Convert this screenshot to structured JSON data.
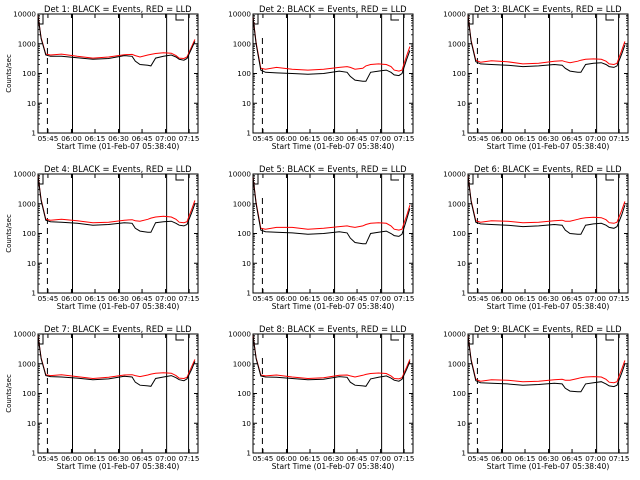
{
  "chart_data": {
    "type": "line",
    "layout": "3x3 grid",
    "xlabel": "Start Time (01-Feb-07 05:38:40)",
    "ylabel": "Counts/sec",
    "x_tick_labels": [
      "05:45",
      "06:00",
      "06:15",
      "06:30",
      "06:45",
      "07:00",
      "07:15"
    ],
    "y_tick_labels": [
      "1",
      "10",
      "100",
      "1000",
      "10000"
    ],
    "y_scale": "log",
    "ylim": [
      1,
      10000
    ],
    "xlim_minutes": [
      0,
      102
    ],
    "colors": {
      "events": "#000000",
      "lld": "#ff0000",
      "axes": "#000000",
      "background": "#ffffff"
    },
    "panels": [
      {
        "title": "Det 1: BLACK = Events, RED = LLD",
        "x": [
          0,
          2,
          5,
          8,
          15,
          25,
          35,
          45,
          55,
          60,
          62,
          65,
          70,
          72,
          75,
          80,
          85,
          88,
          90,
          93,
          95,
          98,
          100
        ],
        "series": [
          {
            "name": "Events",
            "values": [
              9000,
              1500,
              420,
              380,
              380,
              340,
              300,
              320,
              400,
              380,
              260,
              200,
              190,
              180,
              330,
              380,
              420,
              360,
              300,
              280,
              320,
              700,
              1200
            ]
          },
          {
            "name": "LLD",
            "values": [
              9000,
              1600,
              450,
              420,
              450,
              380,
              330,
              360,
              430,
              440,
              400,
              360,
              420,
              440,
              470,
              500,
              480,
              400,
              330,
              320,
              360,
              800,
              1400
            ]
          }
        ]
      },
      {
        "title": "Det 2: BLACK = Events, RED = LLD",
        "x": [
          0,
          2,
          5,
          8,
          15,
          25,
          35,
          45,
          55,
          60,
          62,
          65,
          70,
          72,
          75,
          80,
          85,
          88,
          90,
          93,
          95,
          98,
          100
        ],
        "series": [
          {
            "name": "Events",
            "values": [
              8000,
              1000,
              130,
              110,
              105,
              100,
              95,
              100,
              120,
              110,
              80,
              60,
              55,
              55,
              110,
              120,
              130,
              110,
              90,
              85,
              100,
              300,
              600
            ]
          },
          {
            "name": "LLD",
            "values": [
              8000,
              1100,
              150,
              140,
              160,
              140,
              130,
              140,
              160,
              170,
              160,
              140,
              150,
              180,
              200,
              210,
              200,
              170,
              130,
              120,
              130,
              400,
              800
            ]
          }
        ]
      },
      {
        "title": "Det 3: BLACK = Events, RED = LLD",
        "x": [
          0,
          2,
          5,
          8,
          15,
          25,
          35,
          45,
          55,
          60,
          62,
          65,
          70,
          72,
          75,
          80,
          85,
          88,
          90,
          93,
          95,
          98,
          100
        ],
        "series": [
          {
            "name": "Events",
            "values": [
              9000,
              1200,
              250,
              210,
              200,
              190,
              170,
              180,
              200,
              190,
              150,
              120,
              110,
              110,
              200,
              220,
              230,
              200,
              170,
              160,
              180,
              450,
              900
            ]
          },
          {
            "name": "LLD",
            "values": [
              9000,
              1300,
              280,
              240,
              270,
              250,
              210,
              220,
              260,
              270,
              250,
              230,
              260,
              280,
              300,
              310,
              300,
              260,
              210,
              200,
              220,
              600,
              1200
            ]
          }
        ]
      },
      {
        "title": "Det 4: BLACK = Events, RED = LLD",
        "x": [
          0,
          2,
          5,
          8,
          15,
          25,
          35,
          45,
          55,
          60,
          62,
          65,
          70,
          72,
          75,
          80,
          85,
          88,
          90,
          93,
          95,
          98,
          100
        ],
        "series": [
          {
            "name": "Events",
            "values": [
              9000,
              1300,
              280,
              250,
              240,
              220,
              190,
              200,
              230,
              220,
              150,
              120,
              110,
              110,
              230,
              250,
              260,
              220,
              190,
              180,
              200,
              500,
              1000
            ]
          },
          {
            "name": "LLD",
            "values": [
              9000,
              1400,
              300,
              280,
              300,
              270,
              230,
              240,
              280,
              290,
              270,
              260,
              300,
              330,
              360,
              380,
              360,
              300,
              240,
              230,
              250,
              650,
              1300
            ]
          }
        ]
      },
      {
        "title": "Det 5: BLACK = Events, RED = LLD",
        "x": [
          0,
          2,
          5,
          8,
          15,
          25,
          35,
          45,
          55,
          60,
          62,
          65,
          70,
          72,
          75,
          80,
          85,
          88,
          90,
          93,
          95,
          98,
          100
        ],
        "series": [
          {
            "name": "Events",
            "values": [
              8000,
              1000,
              130,
              115,
              110,
              105,
              95,
              100,
              115,
              105,
              70,
              50,
              45,
              45,
              100,
              110,
              120,
              100,
              85,
              80,
              95,
              300,
              700
            ]
          },
          {
            "name": "LLD",
            "values": [
              8000,
              1100,
              150,
              140,
              160,
              160,
              140,
              150,
              170,
              180,
              170,
              160,
              180,
              200,
              220,
              230,
              220,
              180,
              140,
              130,
              140,
              400,
              900
            ]
          }
        ]
      },
      {
        "title": "Det 6: BLACK = Events, RED = LLD",
        "x": [
          0,
          2,
          5,
          8,
          15,
          25,
          35,
          45,
          55,
          60,
          62,
          65,
          70,
          72,
          75,
          80,
          85,
          88,
          90,
          93,
          95,
          98,
          100
        ],
        "series": [
          {
            "name": "Events",
            "values": [
              9000,
              1200,
              240,
              210,
              200,
              190,
              170,
              180,
              200,
              190,
              130,
              100,
              95,
              95,
              190,
              210,
              220,
              190,
              160,
              150,
              170,
              420,
              900
            ]
          },
          {
            "name": "LLD",
            "values": [
              9000,
              1300,
              270,
              240,
              270,
              260,
              230,
              240,
              270,
              280,
              260,
              260,
              300,
              320,
              340,
              350,
              340,
              290,
              230,
              220,
              240,
              600,
              1200
            ]
          }
        ]
      },
      {
        "title": "Det 7: BLACK = Events, RED = LLD",
        "x": [
          0,
          2,
          5,
          8,
          15,
          25,
          35,
          45,
          55,
          60,
          62,
          65,
          70,
          72,
          75,
          80,
          85,
          88,
          90,
          93,
          95,
          98,
          100
        ],
        "series": [
          {
            "name": "Events",
            "values": [
              9000,
              1500,
              400,
              370,
              360,
              330,
              290,
              310,
              380,
              360,
              240,
              190,
              180,
              175,
              320,
              360,
              400,
              340,
              290,
              270,
              310,
              650,
              1200
            ]
          },
          {
            "name": "LLD",
            "values": [
              9000,
              1600,
              430,
              400,
              430,
              370,
              320,
              350,
              420,
              430,
              400,
              370,
              420,
              450,
              480,
              500,
              480,
              400,
              330,
              320,
              350,
              800,
              1400
            ]
          }
        ]
      },
      {
        "title": "Det 8: BLACK = Events, RED = LLD",
        "x": [
          0,
          2,
          5,
          8,
          15,
          25,
          35,
          45,
          55,
          60,
          62,
          65,
          70,
          72,
          75,
          80,
          85,
          88,
          90,
          93,
          95,
          98,
          100
        ],
        "series": [
          {
            "name": "Events",
            "values": [
              9000,
              1500,
              390,
              360,
              350,
              320,
              290,
              300,
              370,
              350,
              240,
              190,
              180,
              175,
              310,
              350,
              390,
              330,
              280,
              260,
              300,
              650,
              1200
            ]
          },
          {
            "name": "LLD",
            "values": [
              9000,
              1600,
              420,
              390,
              420,
              360,
              320,
              340,
              410,
              420,
              390,
              360,
              410,
              440,
              470,
              490,
              470,
              390,
              320,
              310,
              340,
              780,
              1400
            ]
          }
        ]
      },
      {
        "title": "Det 9: BLACK = Events, RED = LLD",
        "x": [
          0,
          2,
          5,
          8,
          15,
          25,
          35,
          45,
          55,
          60,
          62,
          65,
          70,
          72,
          75,
          80,
          85,
          88,
          90,
          93,
          95,
          98,
          100
        ],
        "series": [
          {
            "name": "Events",
            "values": [
              9000,
              1300,
              270,
              230,
              220,
              210,
              190,
              200,
              220,
              210,
              150,
              120,
              115,
              115,
              210,
              230,
              250,
              210,
              180,
              170,
              190,
              480,
              1000
            ]
          },
          {
            "name": "LLD",
            "values": [
              9000,
              1400,
              300,
              260,
              290,
              280,
              250,
              260,
              290,
              300,
              280,
              280,
              320,
              340,
              360,
              370,
              360,
              300,
              240,
              230,
              250,
              650,
              1300
            ]
          }
        ]
      }
    ]
  }
}
